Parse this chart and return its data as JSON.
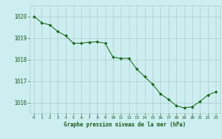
{
  "x": [
    0,
    1,
    2,
    3,
    4,
    5,
    6,
    7,
    8,
    9,
    10,
    11,
    12,
    13,
    14,
    15,
    16,
    17,
    18,
    19,
    20,
    21,
    22,
    23
  ],
  "y": [
    1020.0,
    1019.7,
    1019.6,
    1019.3,
    1019.1,
    1018.75,
    1018.75,
    1018.8,
    1018.82,
    1018.75,
    1018.1,
    1018.05,
    1018.05,
    1017.55,
    1017.2,
    1016.85,
    1016.4,
    1016.15,
    1015.85,
    1015.75,
    1015.8,
    1016.05,
    1016.35,
    1016.5
  ],
  "line_color": "#1a6b1a",
  "marker": "D",
  "marker_size": 2.0,
  "bg_color": "#cceef0",
  "grid_color": "#b0c8c8",
  "xlabel": "Graphe pression niveau de la mer (hPa)",
  "xlabel_color": "#1a5c1a",
  "tick_color": "#1a5c1a",
  "ylim": [
    1015.5,
    1020.5
  ],
  "yticks": [
    1016,
    1017,
    1018,
    1019,
    1020
  ],
  "xlim": [
    -0.5,
    23.5
  ],
  "xticks": [
    0,
    1,
    2,
    3,
    4,
    5,
    6,
    7,
    8,
    9,
    10,
    11,
    12,
    13,
    14,
    15,
    16,
    17,
    18,
    19,
    20,
    21,
    22,
    23
  ]
}
